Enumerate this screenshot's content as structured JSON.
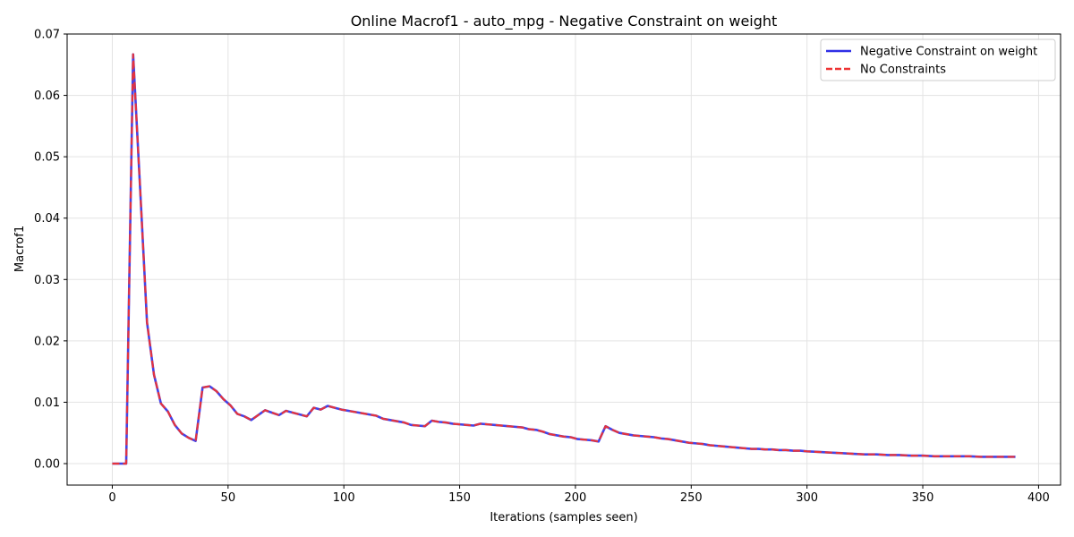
{
  "chart_data": {
    "type": "line",
    "title": "Online Macrof1 - auto_mpg - Negative Constraint on weight",
    "xlabel": "Iterations (samples seen)",
    "ylabel": "Macrof1",
    "xlim": [
      -19.5,
      409.5
    ],
    "ylim": [
      -0.0035,
      0.07
    ],
    "xticks": [
      0,
      50,
      100,
      150,
      200,
      250,
      300,
      350,
      400
    ],
    "xtick_labels": [
      "0",
      "50",
      "100",
      "150",
      "200",
      "250",
      "300",
      "350",
      "400"
    ],
    "yticks": [
      0,
      0.01,
      0.02,
      0.03,
      0.04,
      0.05,
      0.06,
      0.07
    ],
    "ytick_labels": [
      "0.00",
      "0.01",
      "0.02",
      "0.03",
      "0.04",
      "0.05",
      "0.06",
      "0.07"
    ],
    "grid": true,
    "legend_position": "top-right",
    "x": [
      0,
      3,
      6,
      9,
      12,
      15,
      18,
      21,
      24,
      27,
      30,
      33,
      36,
      39,
      42,
      45,
      48,
      51,
      54,
      57,
      60,
      63,
      66,
      69,
      72,
      75,
      78,
      81,
      84,
      87,
      90,
      93,
      96,
      99,
      102,
      105,
      108,
      111,
      114,
      117,
      120,
      123,
      126,
      129,
      132,
      135,
      138,
      141,
      144,
      147,
      150,
      153,
      156,
      159,
      162,
      165,
      168,
      171,
      174,
      177,
      180,
      183,
      186,
      189,
      192,
      195,
      198,
      201,
      204,
      207,
      210,
      213,
      216,
      219,
      222,
      225,
      228,
      231,
      234,
      237,
      240,
      243,
      246,
      249,
      252,
      255,
      258,
      261,
      264,
      267,
      270,
      273,
      276,
      279,
      282,
      285,
      288,
      291,
      294,
      297,
      300,
      305,
      310,
      315,
      320,
      325,
      330,
      335,
      340,
      345,
      350,
      355,
      360,
      365,
      370,
      375,
      380,
      385,
      390
    ],
    "series": [
      {
        "name": "Negative Constraint on weight",
        "color": "#2f2fe6",
        "style": "solid",
        "values": [
          0,
          0,
          0,
          0.0667,
          0.045,
          0.023,
          0.0145,
          0.0098,
          0.0085,
          0.0063,
          0.0049,
          0.0042,
          0.0037,
          0.0124,
          0.0126,
          0.0118,
          0.0105,
          0.0095,
          0.0081,
          0.0077,
          0.0071,
          0.0079,
          0.0087,
          0.0083,
          0.0079,
          0.0086,
          0.0083,
          0.008,
          0.0077,
          0.0091,
          0.0088,
          0.0094,
          0.0091,
          0.0088,
          0.0086,
          0.0084,
          0.0082,
          0.008,
          0.0078,
          0.0073,
          0.0071,
          0.0069,
          0.0067,
          0.0063,
          0.0062,
          0.0061,
          0.007,
          0.0068,
          0.0067,
          0.0065,
          0.0064,
          0.0063,
          0.0062,
          0.0065,
          0.0064,
          0.0063,
          0.0062,
          0.0061,
          0.006,
          0.0059,
          0.0056,
          0.0055,
          0.0052,
          0.0048,
          0.0046,
          0.0044,
          0.0043,
          0.004,
          0.0039,
          0.0038,
          0.0036,
          0.0061,
          0.0055,
          0.005,
          0.0048,
          0.0046,
          0.0045,
          0.0044,
          0.0043,
          0.0041,
          0.004,
          0.0038,
          0.0036,
          0.0034,
          0.0033,
          0.0032,
          0.003,
          0.0029,
          0.0028,
          0.0027,
          0.0026,
          0.0025,
          0.0024,
          0.0024,
          0.0023,
          0.0023,
          0.0022,
          0.0022,
          0.0021,
          0.0021,
          0.002,
          0.0019,
          0.0018,
          0.0017,
          0.0016,
          0.0015,
          0.0015,
          0.0014,
          0.0014,
          0.0013,
          0.0013,
          0.0012,
          0.0012,
          0.0012,
          0.0012,
          0.0011,
          0.0011,
          0.0011,
          0.0011
        ]
      },
      {
        "name": "No Constraints",
        "color": "#ee3333",
        "style": "dashed",
        "values": [
          0,
          0,
          0,
          0.0667,
          0.045,
          0.023,
          0.0145,
          0.0098,
          0.0085,
          0.0063,
          0.0049,
          0.0042,
          0.0037,
          0.0124,
          0.0126,
          0.0118,
          0.0105,
          0.0095,
          0.0081,
          0.0077,
          0.0071,
          0.0079,
          0.0087,
          0.0083,
          0.0079,
          0.0086,
          0.0083,
          0.008,
          0.0077,
          0.0091,
          0.0088,
          0.0094,
          0.0091,
          0.0088,
          0.0086,
          0.0084,
          0.0082,
          0.008,
          0.0078,
          0.0073,
          0.0071,
          0.0069,
          0.0067,
          0.0063,
          0.0062,
          0.0061,
          0.007,
          0.0068,
          0.0067,
          0.0065,
          0.0064,
          0.0063,
          0.0062,
          0.0065,
          0.0064,
          0.0063,
          0.0062,
          0.0061,
          0.006,
          0.0059,
          0.0056,
          0.0055,
          0.0052,
          0.0048,
          0.0046,
          0.0044,
          0.0043,
          0.004,
          0.0039,
          0.0038,
          0.0036,
          0.0061,
          0.0055,
          0.005,
          0.0048,
          0.0046,
          0.0045,
          0.0044,
          0.0043,
          0.0041,
          0.004,
          0.0038,
          0.0036,
          0.0034,
          0.0033,
          0.0032,
          0.003,
          0.0029,
          0.0028,
          0.0027,
          0.0026,
          0.0025,
          0.0024,
          0.0024,
          0.0023,
          0.0023,
          0.0022,
          0.0022,
          0.0021,
          0.0021,
          0.002,
          0.0019,
          0.0018,
          0.0017,
          0.0016,
          0.0015,
          0.0015,
          0.0014,
          0.0014,
          0.0013,
          0.0013,
          0.0012,
          0.0012,
          0.0012,
          0.0012,
          0.0011,
          0.0011,
          0.0011,
          0.0011
        ]
      }
    ]
  }
}
